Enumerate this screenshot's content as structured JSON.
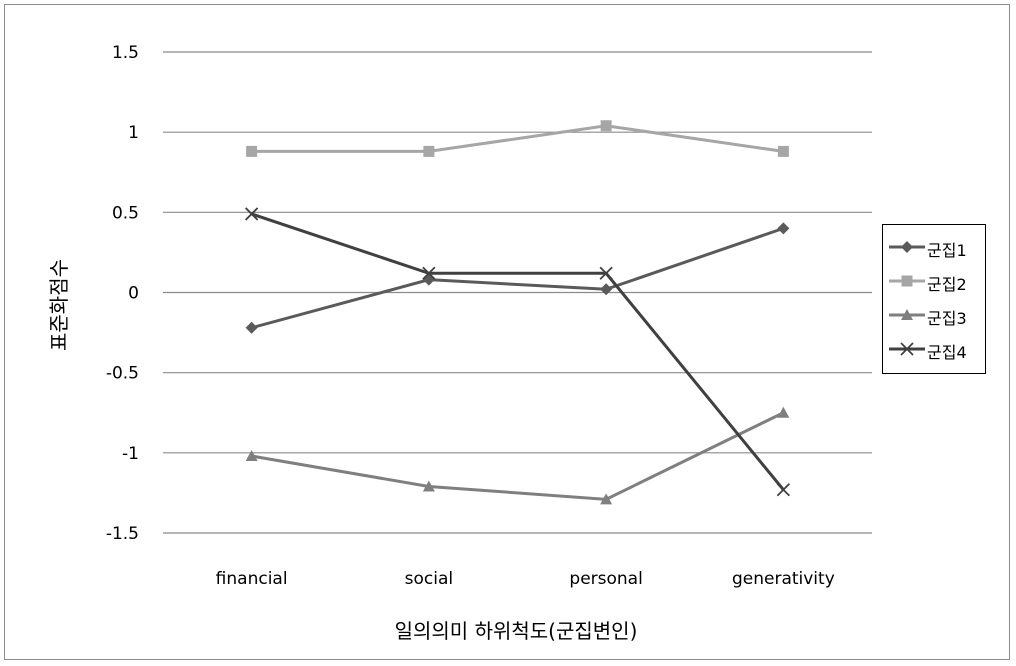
{
  "chart_data": {
    "type": "line",
    "title": "",
    "xlabel": "일의의미 하위척도(군집변인)",
    "ylabel": "표준화점수",
    "categories": [
      "financial",
      "social",
      "personal",
      "generativity"
    ],
    "ylim": [
      -1.5,
      1.5
    ],
    "yticks": [
      1.5,
      1,
      0.5,
      0,
      -0.5,
      -1,
      -1.5
    ],
    "ytick_labels": [
      "1.5",
      "1",
      "0.5",
      "0",
      "-0.5",
      "-1",
      "-1.5"
    ],
    "grid": "horizontal",
    "legend_position": "right",
    "series": [
      {
        "name": "군집1",
        "values": [
          -0.22,
          0.08,
          0.02,
          0.4
        ],
        "color": "#5a5a5a",
        "marker": "diamond"
      },
      {
        "name": "군집2",
        "values": [
          0.88,
          0.88,
          1.04,
          0.88
        ],
        "color": "#a6a6a6",
        "marker": "square"
      },
      {
        "name": "군집3",
        "values": [
          -1.02,
          -1.21,
          -1.29,
          -0.75
        ],
        "color": "#7f7f7f",
        "marker": "triangle"
      },
      {
        "name": "군집4",
        "values": [
          0.49,
          0.12,
          0.12,
          -1.23
        ],
        "color": "#404040",
        "marker": "x"
      }
    ]
  }
}
